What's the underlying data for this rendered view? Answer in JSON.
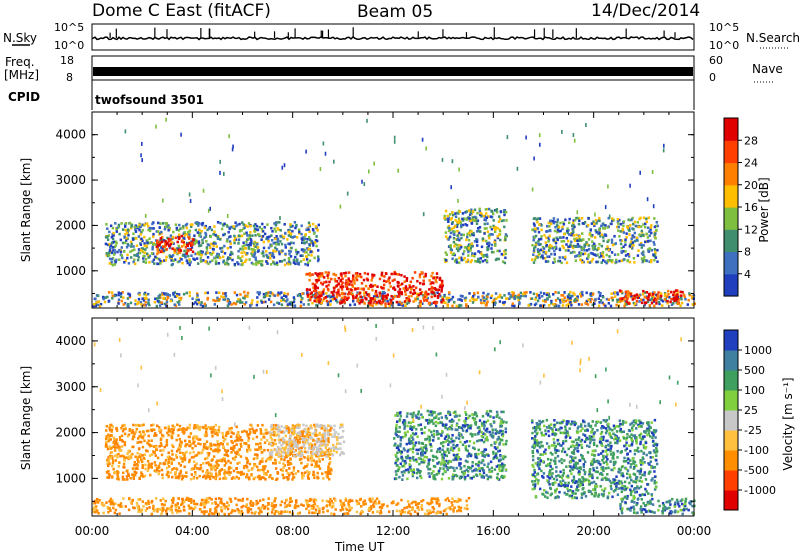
{
  "header": {
    "station": "Dome C East (fitACF)",
    "beam": "Beam 05",
    "date": "14/Dec/2014"
  },
  "top_panels": {
    "nsky_label": "N.Sky",
    "nsearch_label": "N.Search",
    "freq_label": "Freq.",
    "freq_unit": "[MHz]",
    "nave_label": "Nave",
    "cpid_label": "CPID",
    "cpid_value": "twofsound 3501",
    "noise_ticks_left": [
      "10^5",
      "10^0"
    ],
    "noise_ticks_right": [
      "10^5",
      "10^0"
    ],
    "freq_ticks": [
      "18",
      "8"
    ],
    "nave_ticks": [
      "60",
      "0"
    ]
  },
  "chart_data": [
    {
      "type": "heatmap",
      "name": "power",
      "title": "",
      "xlabel": "Time UT",
      "ylabel": "Slant Range [km]",
      "xlim": [
        0,
        24
      ],
      "ylim": [
        180,
        4500
      ],
      "x_ticks": [
        "00:00",
        "04:00",
        "08:00",
        "12:00",
        "16:00",
        "20:00",
        "00:00"
      ],
      "y_ticks": [
        "1000",
        "2000",
        "3000",
        "4000"
      ],
      "colorbar_label": "Power [dB]",
      "colorbar_ticks": [
        "4",
        "8",
        "12",
        "16",
        "20",
        "24",
        "28"
      ],
      "colorbar_colors": [
        "#1f3fbf",
        "#3f6fbf",
        "#3f8f6f",
        "#7fbf3f",
        "#ffbf00",
        "#ff7f00",
        "#ff3f00",
        "#e00000"
      ],
      "regions": [
        {
          "t": [
            0.0,
            24.0
          ],
          "r": [
            250,
            560
          ],
          "level": "low"
        },
        {
          "t": [
            0.5,
            9.0
          ],
          "r": [
            1150,
            2100
          ],
          "level": "mid"
        },
        {
          "t": [
            2.5,
            4.0
          ],
          "r": [
            1400,
            1800
          ],
          "level": "high"
        },
        {
          "t": [
            8.5,
            14.0
          ],
          "r": [
            300,
            1000
          ],
          "level": "high"
        },
        {
          "t": [
            14.0,
            16.5
          ],
          "r": [
            1200,
            2400
          ],
          "level": "mid"
        },
        {
          "t": [
            17.5,
            22.5
          ],
          "r": [
            1200,
            2200
          ],
          "level": "mid"
        },
        {
          "t": [
            21.0,
            23.5
          ],
          "r": [
            300,
            600
          ],
          "level": "high"
        }
      ]
    },
    {
      "type": "heatmap",
      "name": "velocity",
      "title": "",
      "xlabel": "Time UT",
      "ylabel": "Slant Range [km]",
      "xlim": [
        0,
        24
      ],
      "ylim": [
        180,
        4500
      ],
      "x_ticks": [
        "00:00",
        "04:00",
        "08:00",
        "12:00",
        "16:00",
        "20:00",
        "00:00"
      ],
      "y_ticks": [
        "1000",
        "2000",
        "3000",
        "4000"
      ],
      "colorbar_label": "Velocity [m s⁻¹]",
      "colorbar_ticks": [
        "1000",
        "500",
        "100",
        "25",
        "-25",
        "-100",
        "-500",
        "-1000"
      ],
      "colorbar_colors": [
        "#1f3fbf",
        "#3f7f9f",
        "#3f9f5f",
        "#7fcf3f",
        "#c8c8c8",
        "#ffbf3f",
        "#ff8f00",
        "#ff3f00",
        "#e00000"
      ],
      "regions": [
        {
          "t": [
            0.0,
            15.0
          ],
          "r": [
            250,
            600
          ],
          "level": "orange"
        },
        {
          "t": [
            0.5,
            9.5
          ],
          "r": [
            1000,
            2200
          ],
          "level": "orange"
        },
        {
          "t": [
            7.0,
            10.0
          ],
          "r": [
            1500,
            2200
          ],
          "level": "grey"
        },
        {
          "t": [
            12.0,
            16.5
          ],
          "r": [
            1000,
            2500
          ],
          "level": "green"
        },
        {
          "t": [
            17.5,
            22.5
          ],
          "r": [
            600,
            2300
          ],
          "level": "green"
        },
        {
          "t": [
            21.0,
            24.0
          ],
          "r": [
            250,
            600
          ],
          "level": "green"
        }
      ]
    }
  ]
}
